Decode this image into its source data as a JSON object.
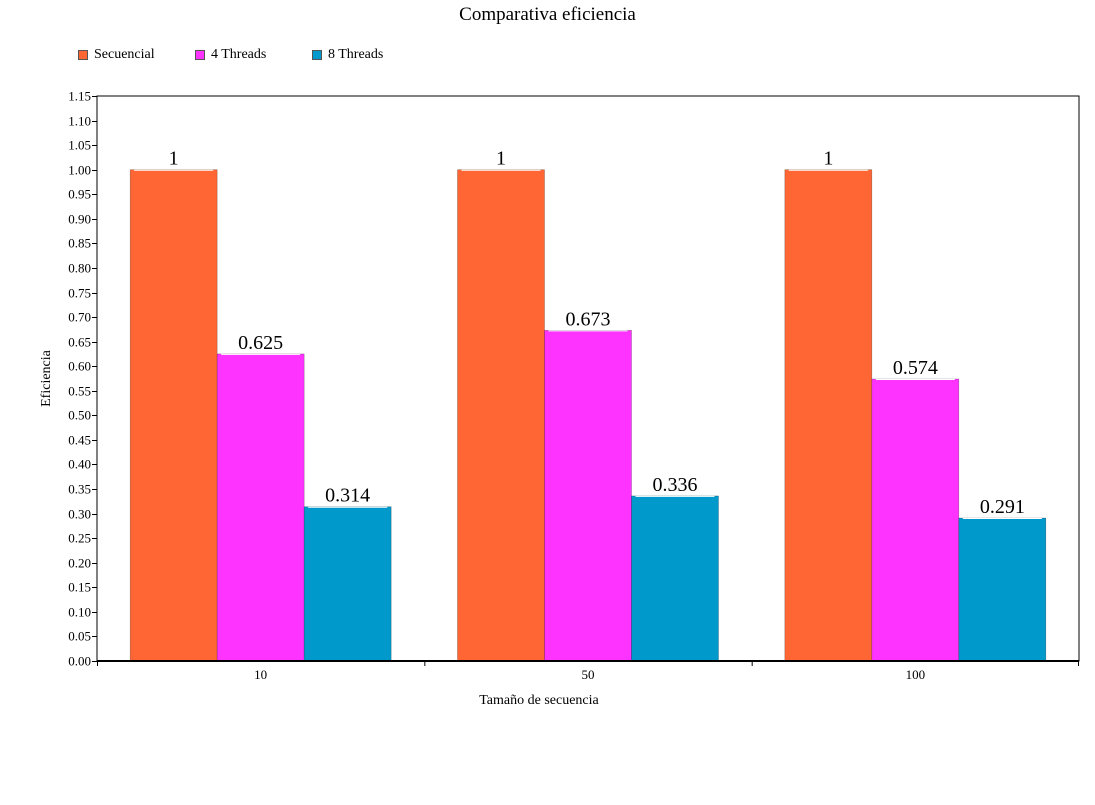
{
  "chart_data": {
    "type": "bar",
    "title": "Comparativa eficiencia",
    "xlabel": "Tamaño de secuencia",
    "ylabel": "Eficiencia",
    "categories": [
      "10",
      "50",
      "100"
    ],
    "series": [
      {
        "name": "Secuencial",
        "color": "#FF6633",
        "values": [
          1,
          1,
          1
        ],
        "labels": [
          "1",
          "1",
          "1"
        ]
      },
      {
        "name": "4 Threads",
        "color": "#FF33FF",
        "values": [
          0.625,
          0.673,
          0.574
        ],
        "labels": [
          "0.625",
          "0.673",
          "0.574"
        ]
      },
      {
        "name": "8 Threads",
        "color": "#0099CC",
        "values": [
          0.314,
          0.336,
          0.291
        ],
        "labels": [
          "0.314",
          "0.336",
          "0.291"
        ]
      }
    ],
    "ylim": [
      0,
      1.15
    ],
    "ytick_step": 0.05,
    "grid": false,
    "legend_position": "top-left"
  }
}
